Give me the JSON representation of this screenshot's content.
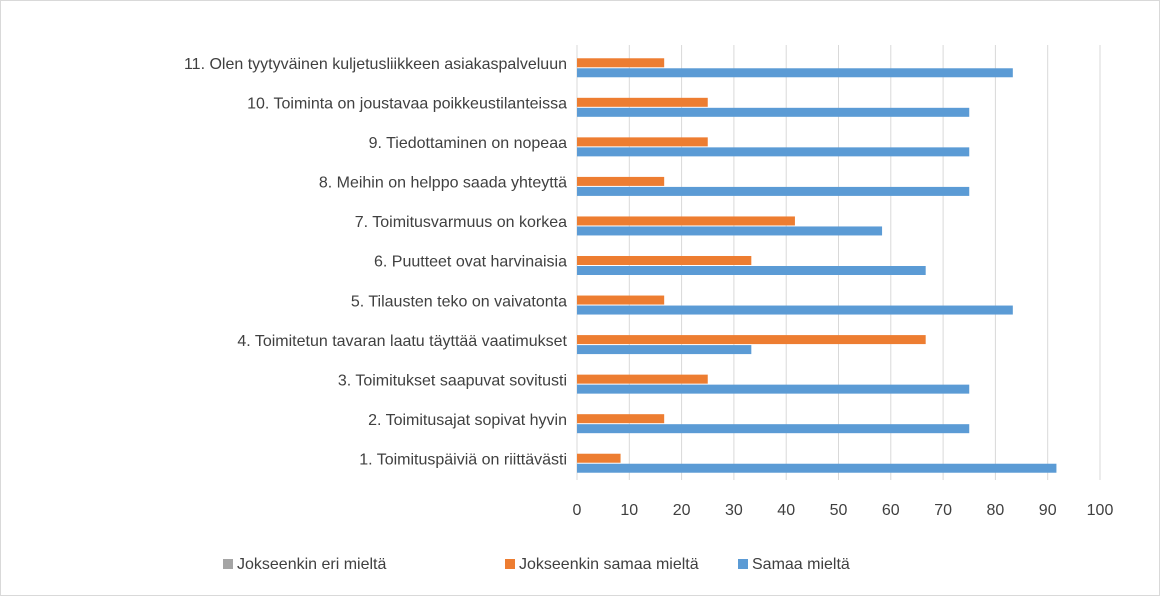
{
  "chart_data": {
    "type": "bar",
    "orientation": "horizontal",
    "categories": [
      "1. Toimituspäiviä on riittävästi",
      "2. Toimitusajat sopivat hyvin",
      "3. Toimitukset saapuvat sovitusti",
      "4. Toimitetun tavaran laatu täyttää vaatimukset",
      "5. Tilausten teko on vaivatonta",
      "6. Puutteet ovat harvinaisia",
      "7. Toimitusvarmuus on korkea",
      "8. Meihin on helppo saada yhteyttä",
      "9. Tiedottaminen on nopeaa",
      "10. Toiminta on joustavaa poikkeustilanteissa",
      "11. Olen tyytyväinen kuljetusliikkeen asiakaspalveluun"
    ],
    "series": [
      {
        "name": "Jokseenkin eri mieltä",
        "color": "#a5a5a5",
        "values": [
          0,
          0,
          0,
          0,
          0,
          0,
          0,
          0,
          0,
          0,
          0
        ]
      },
      {
        "name": "Jokseenkin samaa mieltä",
        "color": "#ed7d31",
        "values": [
          8.33,
          16.67,
          25,
          66.67,
          16.67,
          33.33,
          41.67,
          16.67,
          25,
          25,
          16.67
        ]
      },
      {
        "name": "Samaa mieltä",
        "color": "#5b9bd5",
        "values": [
          91.67,
          75,
          75,
          33.33,
          83.33,
          66.67,
          58.33,
          75,
          75,
          75,
          83.33
        ]
      }
    ],
    "xlim": [
      0,
      100
    ],
    "xticks": [
      0,
      10,
      20,
      30,
      40,
      50,
      60,
      70,
      80,
      90,
      100
    ],
    "grid": true,
    "legend": "bottom"
  }
}
